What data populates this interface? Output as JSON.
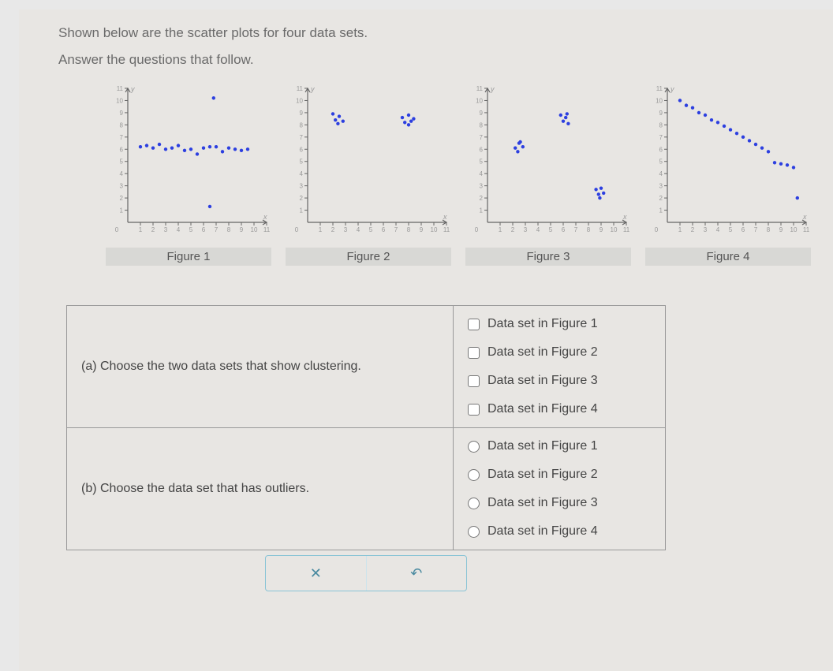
{
  "intro_line1": "Shown below are the scatter plots for four data sets.",
  "intro_line2": "Answer the questions that follow.",
  "axis": {
    "xmin": 0,
    "xmax": 11,
    "ymin": 0,
    "ymax": 11,
    "ticks": [
      1,
      2,
      3,
      4,
      5,
      6,
      7,
      8,
      9,
      10,
      11
    ],
    "tick_label_color": "#999999",
    "axis_color": "#666666",
    "tick_fontsize": 8,
    "xlabel": "x",
    "ylabel": "y"
  },
  "point_style": {
    "color": "#2c3fe0",
    "radius": 2.2
  },
  "figures": [
    {
      "label": "Figure 1",
      "points": [
        [
          1,
          6.2
        ],
        [
          1.5,
          6.3
        ],
        [
          2,
          6.1
        ],
        [
          2.5,
          6.4
        ],
        [
          3,
          6.0
        ],
        [
          3.5,
          6.1
        ],
        [
          4,
          6.3
        ],
        [
          4.5,
          5.9
        ],
        [
          5,
          6.0
        ],
        [
          5.5,
          5.6
        ],
        [
          6,
          6.1
        ],
        [
          6.5,
          6.2
        ],
        [
          7,
          6.2
        ],
        [
          7.5,
          5.8
        ],
        [
          8,
          6.1
        ],
        [
          8.5,
          6.0
        ],
        [
          9,
          5.9
        ],
        [
          9.5,
          6.0
        ],
        [
          6.8,
          10.2
        ],
        [
          6.5,
          1.3
        ]
      ]
    },
    {
      "label": "Figure 2",
      "points": [
        [
          2.0,
          8.9
        ],
        [
          2.2,
          8.4
        ],
        [
          2.5,
          8.7
        ],
        [
          2.4,
          8.1
        ],
        [
          2.8,
          8.3
        ],
        [
          7.5,
          8.6
        ],
        [
          7.7,
          8.2
        ],
        [
          8.0,
          8.8
        ],
        [
          8.2,
          8.3
        ],
        [
          8.0,
          8.0
        ],
        [
          8.4,
          8.5
        ]
      ]
    },
    {
      "label": "Figure 3",
      "points": [
        [
          2.2,
          6.1
        ],
        [
          2.5,
          6.5
        ],
        [
          2.4,
          5.8
        ],
        [
          2.8,
          6.2
        ],
        [
          2.6,
          6.6
        ],
        [
          5.8,
          8.8
        ],
        [
          6.0,
          8.3
        ],
        [
          6.2,
          8.6
        ],
        [
          6.4,
          8.1
        ],
        [
          6.3,
          8.9
        ],
        [
          8.6,
          2.7
        ],
        [
          8.8,
          2.3
        ],
        [
          9.0,
          2.8
        ],
        [
          9.2,
          2.4
        ],
        [
          8.9,
          2.0
        ]
      ]
    },
    {
      "label": "Figure 4",
      "points": [
        [
          1,
          10.0
        ],
        [
          1.5,
          9.6
        ],
        [
          2,
          9.4
        ],
        [
          2.5,
          9.0
        ],
        [
          3,
          8.8
        ],
        [
          3.5,
          8.4
        ],
        [
          4,
          8.2
        ],
        [
          4.5,
          7.9
        ],
        [
          5,
          7.6
        ],
        [
          5.5,
          7.3
        ],
        [
          6,
          7.0
        ],
        [
          6.5,
          6.7
        ],
        [
          7,
          6.4
        ],
        [
          7.5,
          6.1
        ],
        [
          8,
          5.8
        ],
        [
          8.5,
          4.9
        ],
        [
          9,
          4.8
        ],
        [
          9.5,
          4.7
        ],
        [
          10,
          4.5
        ],
        [
          10.3,
          2.0
        ]
      ]
    }
  ],
  "questions": [
    {
      "id": "a",
      "text": "(a) Choose the two data sets that show clustering.",
      "type": "checkbox",
      "options": [
        "Data set in Figure 1",
        "Data set in Figure 2",
        "Data set in Figure 3",
        "Data set in Figure 4"
      ]
    },
    {
      "id": "b",
      "text": "(b) Choose the data set that has outliers.",
      "type": "radio",
      "options": [
        "Data set in Figure 1",
        "Data set in Figure 2",
        "Data set in Figure 3",
        "Data set in Figure 4"
      ]
    }
  ],
  "buttons": {
    "clear": "✕",
    "reset": "↶"
  },
  "colors": {
    "page_bg": "#e8e6e3",
    "label_bg": "#d8d8d5",
    "border": "#999999",
    "text": "#555555",
    "btn_border": "#8ac4d6",
    "btn_text": "#4a8aa0"
  }
}
